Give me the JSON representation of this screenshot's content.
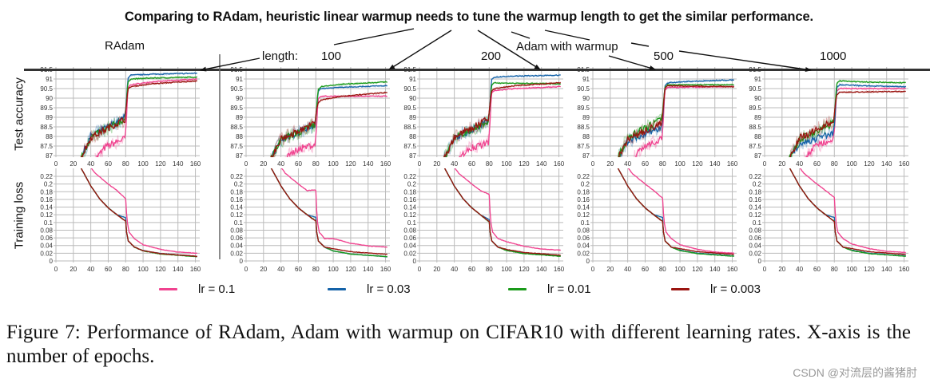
{
  "header": {
    "title": "Comparing to RAdam, heuristic linear warmup needs to tune the warmup length to get the similar performance.",
    "radam_label": "RAdam",
    "length_label": "length:",
    "adam_warmup_label": "Adam with warmup"
  },
  "caption": "Figure 7: Performance of RAdam, Adam with warmup on CIFAR10 with different learning rates. X-axis is the number of epochs.",
  "watermark": "CSDN @对流层的酱猪肘",
  "chart_data": {
    "type": "line",
    "xlabel": "",
    "xlim": [
      0,
      165
    ],
    "x_ticks": [
      "0",
      "20",
      "40",
      "60",
      "80",
      "100",
      "120",
      "140",
      "160"
    ],
    "rows": [
      {
        "ylabel": "Test accuracy",
        "ylim": [
          87,
          91.5
        ],
        "y_ticks": [
          "87",
          "87.5",
          "88",
          "88.5",
          "89",
          "89.5",
          "90",
          "90.5",
          "91",
          "91.5"
        ]
      },
      {
        "ylabel": "Training loss",
        "ylim": [
          0,
          0.22
        ],
        "y_ticks": [
          "0",
          "0.02",
          "0.04",
          "0.06",
          "0.08",
          "0.1",
          "0.12",
          "0.14",
          "0.16",
          "0.18",
          "0.2",
          "0.22"
        ]
      }
    ],
    "legend": [
      {
        "name": "lr = 0.1",
        "color": "#f0428f"
      },
      {
        "name": "lr = 0.03",
        "color": "#1462a8"
      },
      {
        "name": "lr = 0.01",
        "color": "#1a9a1a"
      },
      {
        "name": "lr = 0.003",
        "color": "#9a1410"
      }
    ],
    "panels": [
      {
        "label": "",
        "final_acc": [
          91.0,
          91.3,
          91.1,
          90.9
        ],
        "plateau_acc": [
          90.7,
          91.2,
          91.0,
          90.6
        ],
        "pre80_acc": [
          87.9,
          89.0,
          88.9,
          88.9
        ],
        "final_loss": [
          0.02,
          0.012,
          0.011,
          0.012
        ],
        "loss_at_80": [
          0.162,
          0.112,
          0.104,
          0.104
        ]
      },
      {
        "label": "100",
        "final_acc": [
          90.1,
          90.65,
          90.85,
          90.3
        ],
        "plateau_acc": [
          90.1,
          90.5,
          90.6,
          89.9
        ],
        "pre80_acc": [
          87.6,
          88.6,
          88.6,
          88.7
        ],
        "final_loss": [
          0.036,
          0.011,
          0.011,
          0.017
        ],
        "loss_at_80": [
          0.183,
          0.113,
          0.105,
          0.104
        ]
      },
      {
        "label": "200",
        "final_acc": [
          90.6,
          91.2,
          90.75,
          90.8
        ],
        "plateau_acc": [
          90.4,
          91.1,
          90.8,
          90.5
        ],
        "pre80_acc": [
          87.7,
          88.8,
          88.8,
          88.9
        ],
        "final_loss": [
          0.028,
          0.013,
          0.012,
          0.015
        ],
        "loss_at_80": [
          0.172,
          0.108,
          0.102,
          0.103
        ]
      },
      {
        "label": "500",
        "final_acc": [
          90.6,
          90.95,
          90.7,
          90.6
        ],
        "plateau_acc": [
          90.55,
          90.8,
          90.7,
          90.65
        ],
        "pre80_acc": [
          87.9,
          88.5,
          88.9,
          88.7
        ],
        "final_loss": [
          0.02,
          0.013,
          0.012,
          0.017
        ],
        "loss_at_80": [
          0.163,
          0.113,
          0.104,
          0.103
        ]
      },
      {
        "label": "1000",
        "final_acc": [
          90.5,
          90.6,
          90.8,
          90.35
        ],
        "plateau_acc": [
          90.5,
          90.7,
          90.9,
          90.3
        ],
        "pre80_acc": [
          87.9,
          88.2,
          88.7,
          88.8
        ],
        "final_loss": [
          0.022,
          0.013,
          0.012,
          0.017
        ],
        "loss_at_80": [
          0.165,
          0.113,
          0.104,
          0.103
        ]
      }
    ]
  }
}
